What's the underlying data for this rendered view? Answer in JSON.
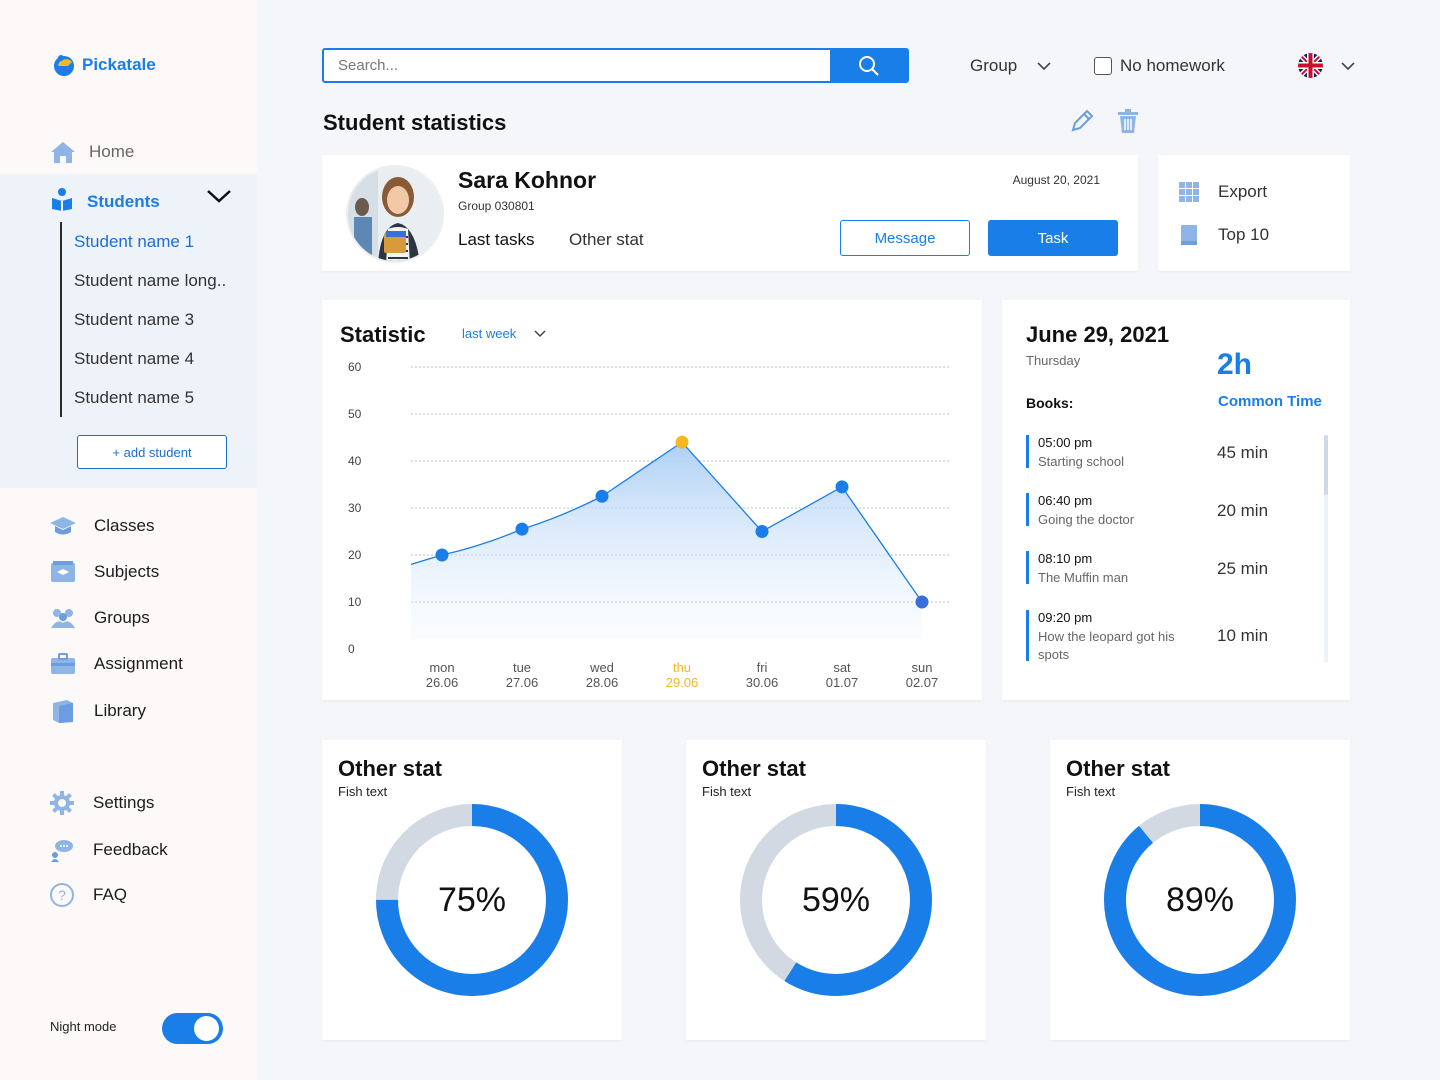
{
  "app": {
    "name": "Pickatale"
  },
  "sidebar": {
    "home": "Home",
    "students": {
      "label": "Students",
      "items": [
        "Student name 1",
        "Student name long..",
        "Student name 3",
        "Student name 4",
        "Student name 5"
      ],
      "add_label": "+ add student"
    },
    "items": [
      {
        "label": "Classes",
        "icon": "graduation-cap-icon"
      },
      {
        "label": "Subjects",
        "icon": "subjects-icon"
      },
      {
        "label": "Groups",
        "icon": "groups-icon"
      },
      {
        "label": "Assignment",
        "icon": "briefcase-icon"
      },
      {
        "label": "Library",
        "icon": "books-icon"
      }
    ],
    "secondary": [
      {
        "label": "Settings",
        "icon": "gear-icon"
      },
      {
        "label": "Feedback",
        "icon": "feedback-icon"
      },
      {
        "label": "FAQ",
        "icon": "question-icon"
      }
    ],
    "night_mode": {
      "label": "Night mode",
      "on": true
    }
  },
  "topbar": {
    "search_placeholder": "Search...",
    "group_label": "Group",
    "homework_label": "No homework",
    "homework_checked": false
  },
  "page": {
    "title": "Student statistics"
  },
  "profile": {
    "name": "Sara Kohnor",
    "group": "Group 030801",
    "date": "August 20, 2021",
    "tabs": [
      "Last tasks",
      "Other stat"
    ],
    "message_label": "Message",
    "task_label": "Task"
  },
  "actions": {
    "export": "Export",
    "top": "Top 10"
  },
  "statistic": {
    "title": "Statistic",
    "period": "last week"
  },
  "chart_data": {
    "type": "area",
    "categories": [
      {
        "day": "mon",
        "date": "26.06"
      },
      {
        "day": "tue",
        "date": "27.06"
      },
      {
        "day": "wed",
        "date": "28.06"
      },
      {
        "day": "thu",
        "date": "29.06"
      },
      {
        "day": "fri",
        "date": "30.06"
      },
      {
        "day": "sat",
        "date": "01.07"
      },
      {
        "day": "sun",
        "date": "02.07"
      }
    ],
    "values": [
      20,
      25.5,
      32.5,
      44,
      25,
      34.5,
      10
    ],
    "highlight_index": 3,
    "yticks": [
      0,
      10,
      20,
      30,
      40,
      50,
      60
    ],
    "ylim": [
      0,
      60
    ],
    "grid": true,
    "colors": {
      "line": "#1a7ee8",
      "point": "#1a7ee8",
      "highlight": "#f5b820",
      "last_point": "#3b6fd8"
    }
  },
  "day": {
    "date": "June 29, 2021",
    "weekday": "Thursday",
    "total": "2h",
    "total_label": "Common Time",
    "books_label": "Books:",
    "books": [
      {
        "time": "05:00 pm",
        "title": "Starting school",
        "duration": "45 min"
      },
      {
        "time": "06:40 pm",
        "title": "Going the doctor",
        "duration": "20 min"
      },
      {
        "time": "08:10 pm",
        "title": "The Muffin man",
        "duration": "25 min"
      },
      {
        "time": "09:20 pm",
        "title": "How the leopard got his spots",
        "duration": "10 min"
      }
    ]
  },
  "donuts": [
    {
      "title": "Other stat",
      "subtitle": "Fish text",
      "percent": 75,
      "label": "75%"
    },
    {
      "title": "Other stat",
      "subtitle": "Fish text",
      "percent": 59,
      "label": "59%"
    },
    {
      "title": "Other stat",
      "subtitle": "Fish text",
      "percent": 89,
      "label": "89%"
    }
  ],
  "colors": {
    "accent": "#1a7ee8",
    "donut_track": "#d3d9e3"
  }
}
